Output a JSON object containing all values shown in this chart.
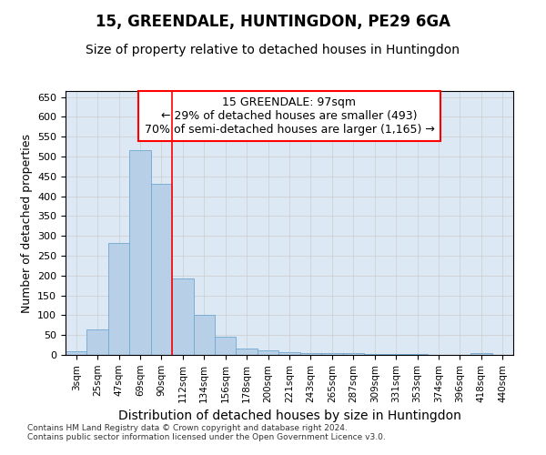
{
  "title1": "15, GREENDALE, HUNTINGDON, PE29 6GA",
  "title2": "Size of property relative to detached houses in Huntingdon",
  "xlabel": "Distribution of detached houses by size in Huntingdon",
  "ylabel": "Number of detached properties",
  "categories": [
    "3sqm",
    "25sqm",
    "47sqm",
    "69sqm",
    "90sqm",
    "112sqm",
    "134sqm",
    "156sqm",
    "178sqm",
    "200sqm",
    "221sqm",
    "243sqm",
    "265sqm",
    "287sqm",
    "309sqm",
    "331sqm",
    "353sqm",
    "374sqm",
    "396sqm",
    "418sqm",
    "440sqm"
  ],
  "values": [
    10,
    65,
    282,
    515,
    432,
    192,
    102,
    46,
    16,
    11,
    7,
    4,
    4,
    4,
    2,
    2,
    2,
    0,
    0,
    5,
    0
  ],
  "bar_color": "#b8cfe8",
  "bar_edge_color": "#6fa8d0",
  "red_line_x": 4.5,
  "annotation_line1": "15 GREENDALE: 97sqm",
  "annotation_line2": "← 29% of detached houses are smaller (493)",
  "annotation_line3": "70% of semi-detached houses are larger (1,165) →",
  "grid_color": "#cccccc",
  "background_color": "#dde8f5",
  "ylim": [
    0,
    665
  ],
  "yticks": [
    0,
    50,
    100,
    150,
    200,
    250,
    300,
    350,
    400,
    450,
    500,
    550,
    600,
    650
  ],
  "footer1": "Contains HM Land Registry data © Crown copyright and database right 2024.",
  "footer2": "Contains public sector information licensed under the Open Government Licence v3.0.",
  "title1_fontsize": 12,
  "title2_fontsize": 10,
  "xlabel_fontsize": 10,
  "ylabel_fontsize": 9,
  "annotation_fontsize": 9,
  "tick_fontsize": 8,
  "footer_fontsize": 6.5
}
